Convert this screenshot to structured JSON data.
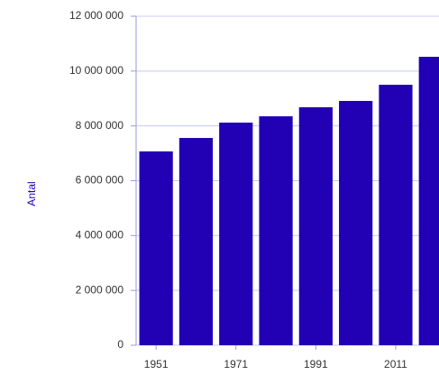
{
  "chart_data": {
    "type": "bar",
    "y_label": "Antal",
    "categories": [
      "1951",
      null,
      "1971",
      null,
      "1991",
      null,
      "2011",
      null
    ],
    "values": [
      7070000,
      7560000,
      8120000,
      8350000,
      8680000,
      8910000,
      9500000,
      10520000
    ],
    "color": "#2200b4",
    "ylim": [
      0,
      12000000
    ],
    "yticks": [
      0,
      {
        "value": 2000000,
        "label": "2 000 000"
      },
      {
        "value": 4000000,
        "label": "4 000 000"
      },
      {
        "value": 6000000,
        "label": "6 000 000"
      },
      {
        "value": 8000000,
        "label": "8 000 000"
      },
      {
        "value": 10000000,
        "label": "10 000 000"
      },
      {
        "value": 12000000,
        "label": "12 000 000"
      }
    ],
    "grid": true
  }
}
